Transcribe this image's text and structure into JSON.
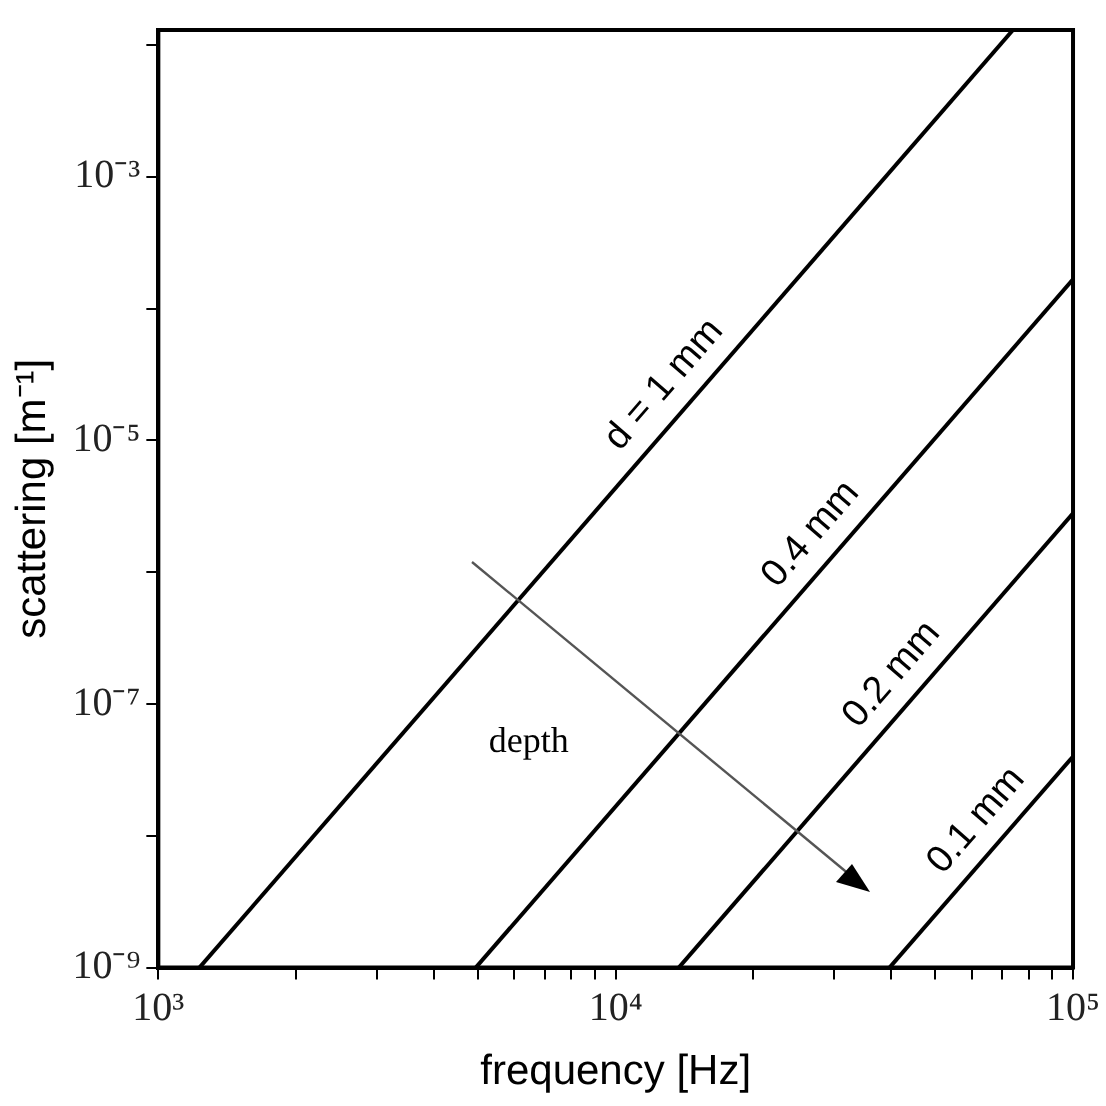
{
  "chart_data": {
    "type": "line",
    "xlabel": "frequency [Hz]",
    "ylabel": "scattering [m⁻¹]",
    "log": "xy",
    "grid": false,
    "legend": false,
    "marker": "none",
    "line_style": "solid",
    "xlim": [
      1000,
      100000
    ],
    "ylim": [
      1e-09,
      0.013
    ],
    "xticks": [
      {
        "value": 1000,
        "label": "10³"
      },
      {
        "value": 2000,
        "label": null
      },
      {
        "value": 3000,
        "label": null
      },
      {
        "value": 4000,
        "label": null
      },
      {
        "value": 5000,
        "label": null
      },
      {
        "value": 6000,
        "label": null
      },
      {
        "value": 7000,
        "label": null
      },
      {
        "value": 8000,
        "label": null
      },
      {
        "value": 9000,
        "label": null
      },
      {
        "value": 10000,
        "label": "10⁴"
      },
      {
        "value": 20000,
        "label": null
      },
      {
        "value": 30000,
        "label": null
      },
      {
        "value": 40000,
        "label": null
      },
      {
        "value": 50000,
        "label": null
      },
      {
        "value": 60000,
        "label": null
      },
      {
        "value": 70000,
        "label": null
      },
      {
        "value": 80000,
        "label": null
      },
      {
        "value": 90000,
        "label": null
      },
      {
        "value": 100000,
        "label": "10⁵"
      }
    ],
    "yticks": [
      {
        "value": 1e-09,
        "label": "10⁻⁹"
      },
      {
        "value": 1e-08,
        "label": null
      },
      {
        "value": 1e-07,
        "label": "10⁻⁷"
      },
      {
        "value": 1e-06,
        "label": null
      },
      {
        "value": 1e-05,
        "label": "10⁻⁵"
      },
      {
        "value": 0.0001,
        "label": null
      },
      {
        "value": 0.001,
        "label": "10⁻³"
      },
      {
        "value": 0.01,
        "label": null
      }
    ],
    "series": [
      {
        "name": "d = 1 mm",
        "color": "#000000",
        "x": [
          1230,
          73900
        ],
        "values": [
          1e-09,
          0.013
        ]
      },
      {
        "name": "0.4 mm",
        "color": "#000000",
        "x": [
          4944,
          100000
        ],
        "values": [
          1e-09,
          0.000167
        ]
      },
      {
        "name": "0.2 mm",
        "color": "#000000",
        "x": [
          13740,
          100000
        ],
        "values": [
          1e-09,
          2.8e-06
        ]
      },
      {
        "name": "0.1 mm",
        "color": "#000000",
        "x": [
          39700,
          100000
        ],
        "values": [
          1e-09,
          4e-08
        ]
      }
    ],
    "annotations": [
      "depth"
    ]
  }
}
